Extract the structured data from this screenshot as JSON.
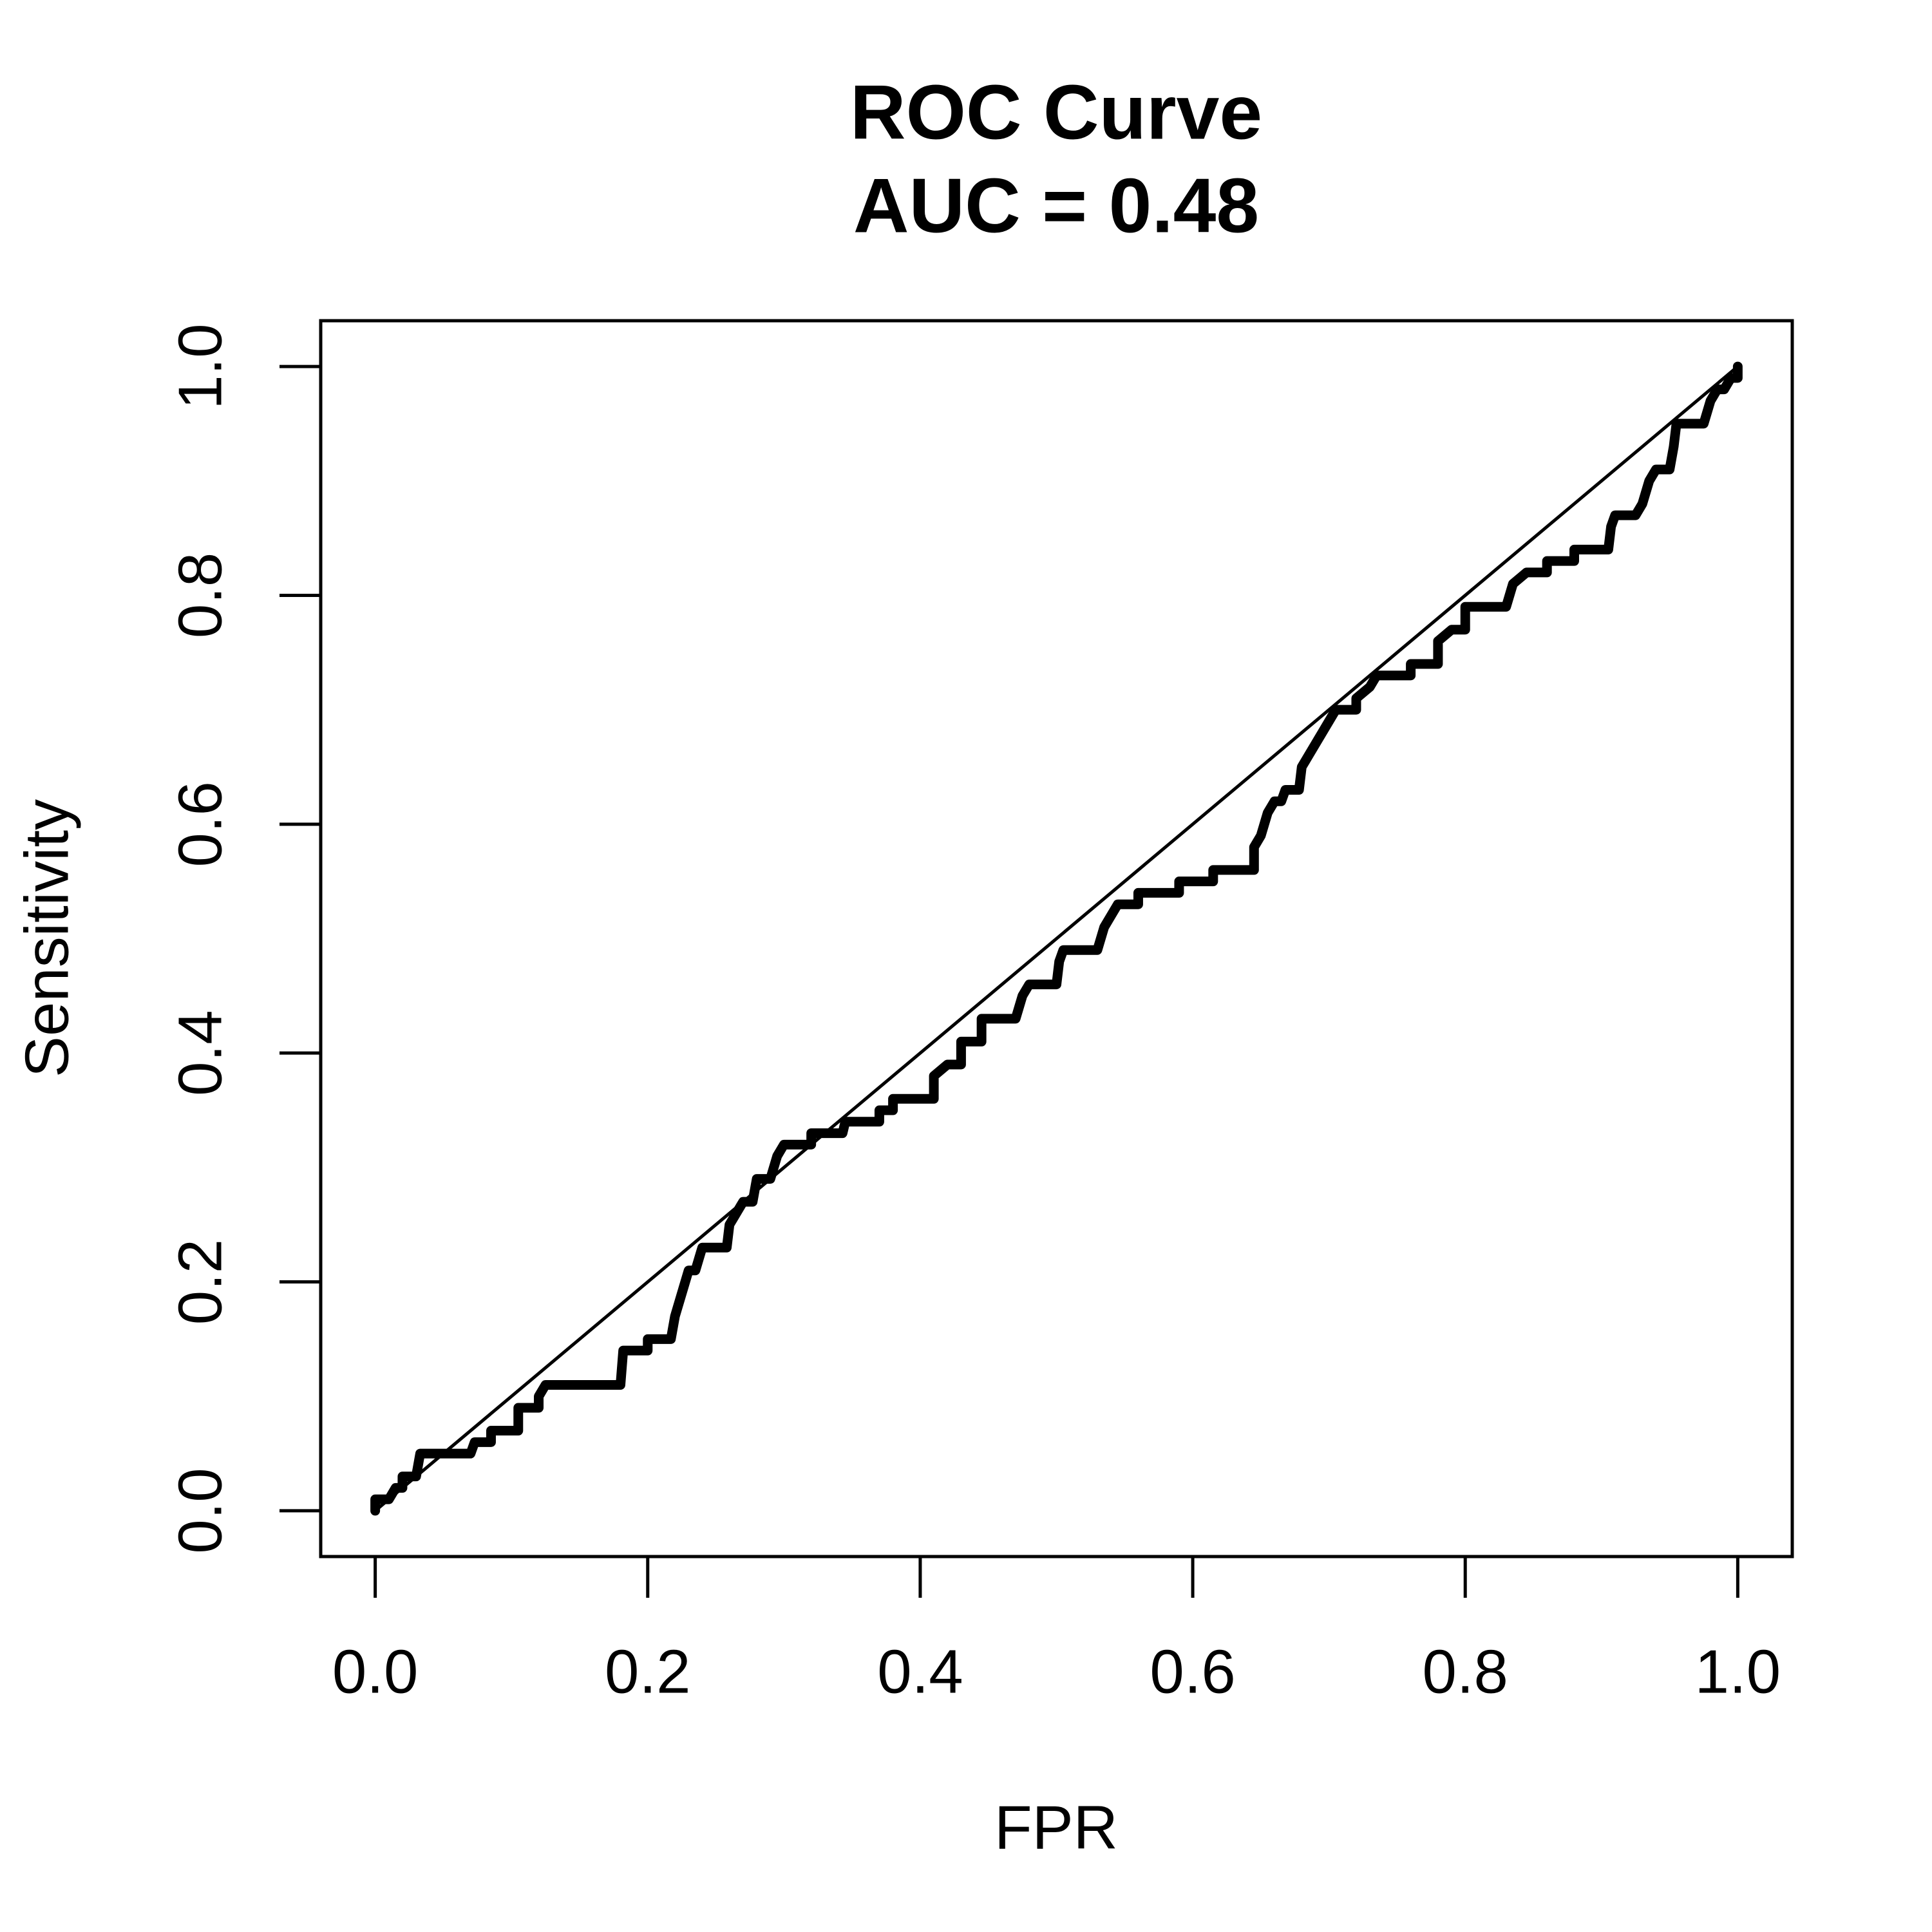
{
  "chart_data": {
    "type": "line",
    "title": "ROC Curve",
    "subtitle": "AUC = 0.48",
    "xlabel": "FPR",
    "ylabel": "Sensitivity",
    "xlim": [
      -0.04,
      1.04
    ],
    "ylim": [
      -0.04,
      1.04
    ],
    "xticks": [
      {
        "value": 0,
        "label": "0.0"
      },
      0.2,
      0.4,
      0.6,
      0.8,
      {
        "value": 1,
        "label": "1.0"
      }
    ],
    "yticks": [
      {
        "value": 0,
        "label": "0.0"
      },
      0.2,
      0.4,
      0.6,
      0.8,
      {
        "value": 1,
        "label": "1.0"
      }
    ],
    "series": [
      {
        "color": "#000000",
        "width": 15,
        "x": [
          0,
          0,
          0.01,
          0.015,
          0.02,
          0.02,
          0.03,
          0.033,
          0.07,
          0.073,
          0.085,
          0.085,
          0.105,
          0.105,
          0.12,
          0.12,
          0.125,
          0.18,
          0.182,
          0.2,
          0.2,
          0.217,
          0.22,
          0.225,
          0.23,
          0.235,
          0.24,
          0.258,
          0.26,
          0.265,
          0.27,
          0.277,
          0.28,
          0.29,
          0.295,
          0.3,
          0.32,
          0.32,
          0.343,
          0.345,
          0.37,
          0.37,
          0.38,
          0.38,
          0.41,
          0.41,
          0.42,
          0.43,
          0.43,
          0.445,
          0.445,
          0.47,
          0.475,
          0.48,
          0.5,
          0.502,
          0.505,
          0.53,
          0.535,
          0.54,
          0.545,
          0.56,
          0.56,
          0.59,
          0.59,
          0.615,
          0.615,
          0.645,
          0.645,
          0.65,
          0.655,
          0.66,
          0.665,
          0.668,
          0.678,
          0.68,
          0.685,
          0.69,
          0.695,
          0.7,
          0.705,
          0.72,
          0.72,
          0.73,
          0.735,
          0.76,
          0.76,
          0.78,
          0.78,
          0.79,
          0.8,
          0.8,
          0.83,
          0.835,
          0.845,
          0.86,
          0.86,
          0.88,
          0.88,
          0.905,
          0.907,
          0.91,
          0.925,
          0.93,
          0.935,
          0.94,
          0.95,
          0.953,
          0.955,
          0.975,
          0.98,
          0.985,
          0.99,
          0.995,
          1,
          1
        ],
        "values": [
          0,
          0.01,
          0.01,
          0.02,
          0.02,
          0.03,
          0.03,
          0.05,
          0.05,
          0.06,
          0.06,
          0.07,
          0.07,
          0.09,
          0.09,
          0.1,
          0.11,
          0.11,
          0.14,
          0.14,
          0.15,
          0.15,
          0.17,
          0.19,
          0.21,
          0.21,
          0.23,
          0.23,
          0.25,
          0.26,
          0.27,
          0.27,
          0.29,
          0.29,
          0.31,
          0.32,
          0.32,
          0.33,
          0.33,
          0.34,
          0.34,
          0.35,
          0.35,
          0.36,
          0.36,
          0.38,
          0.39,
          0.39,
          0.41,
          0.41,
          0.43,
          0.43,
          0.45,
          0.46,
          0.46,
          0.48,
          0.49,
          0.49,
          0.51,
          0.52,
          0.53,
          0.53,
          0.54,
          0.54,
          0.55,
          0.55,
          0.56,
          0.56,
          0.58,
          0.59,
          0.61,
          0.62,
          0.62,
          0.63,
          0.63,
          0.65,
          0.66,
          0.67,
          0.68,
          0.69,
          0.7,
          0.7,
          0.71,
          0.72,
          0.73,
          0.73,
          0.74,
          0.74,
          0.76,
          0.77,
          0.77,
          0.79,
          0.79,
          0.81,
          0.82,
          0.82,
          0.83,
          0.83,
          0.84,
          0.84,
          0.86,
          0.87,
          0.87,
          0.88,
          0.9,
          0.91,
          0.91,
          0.93,
          0.95,
          0.95,
          0.97,
          0.98,
          0.98,
          0.99,
          0.99,
          1
        ]
      },
      {
        "color": "#000000",
        "width": 5,
        "x": [
          0,
          1
        ],
        "values": [
          0,
          1
        ]
      }
    ]
  }
}
